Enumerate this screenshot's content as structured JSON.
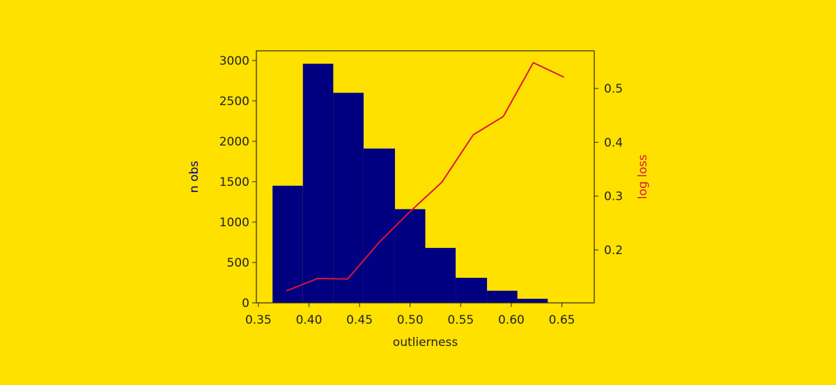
{
  "chart_data": {
    "type": "histogram",
    "xlabel": "outlierness",
    "ylabel": "n obs",
    "y2label": "log loss",
    "bins": [
      0.364,
      0.394,
      0.424,
      0.454,
      0.485,
      0.515,
      0.545,
      0.576,
      0.606,
      0.636
    ],
    "values": [
      1450,
      2960,
      2600,
      1910,
      1160,
      680,
      310,
      150,
      50
    ],
    "color": "#000080",
    "xlim": [
      0.348,
      0.682
    ],
    "ylim": [
      0,
      3120
    ],
    "y2lim": [
      0.1017,
      0.57
    ],
    "xticks": [
      {
        "value": 0.35,
        "label": "0.35"
      },
      {
        "value": 0.4,
        "label": "0.40"
      },
      {
        "value": 0.45,
        "label": "0.45"
      },
      {
        "value": 0.5,
        "label": "0.50"
      },
      {
        "value": 0.55,
        "label": "0.55"
      },
      {
        "value": 0.6,
        "label": "0.60"
      },
      {
        "value": 0.65,
        "label": "0.65"
      }
    ],
    "yticks": [
      0,
      500,
      1000,
      1500,
      2000,
      2500,
      3000
    ],
    "y2ticks": [
      0.2,
      0.3,
      0.4,
      0.5
    ],
    "ylabel_color": "#000080",
    "y2label_color": "#dc143c",
    "series": [
      {
        "type": "line",
        "axis": "y2",
        "color": "#dc143c",
        "x": [
          0.3776,
          0.4086,
          0.4383,
          0.4693,
          0.5003,
          0.5314,
          0.5624,
          0.5921,
          0.6217,
          0.6521
        ],
        "values": [
          0.124,
          0.147,
          0.146,
          0.214,
          0.272,
          0.326,
          0.414,
          0.448,
          0.548,
          0.521
        ]
      }
    ]
  }
}
